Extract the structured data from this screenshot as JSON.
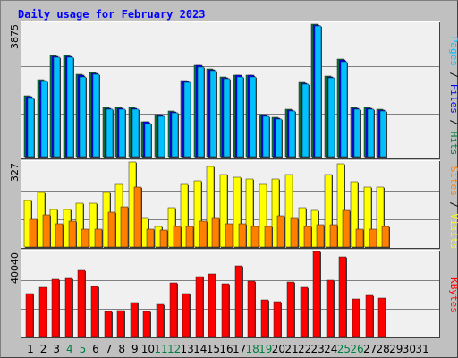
{
  "title": "Daily usage for February 2023",
  "chart_data": [
    {
      "type": "bar",
      "panel": "hits-files-pages",
      "categories": [
        "1",
        "2",
        "3",
        "4",
        "5",
        "6",
        "7",
        "8",
        "9",
        "10",
        "11",
        "12",
        "13",
        "14",
        "15",
        "16",
        "17",
        "18",
        "19",
        "20",
        "21",
        "22",
        "23",
        "24",
        "25",
        "26",
        "27",
        "28",
        "29",
        "30",
        "31"
      ],
      "ymax_label": "3875",
      "ylim": [
        0,
        3875
      ],
      "series": [
        {
          "name": "Hits",
          "color": "#008040",
          "values": [
            1780,
            2250,
            2950,
            2950,
            2400,
            2450,
            1430,
            1430,
            1430,
            1030,
            1230,
            1330,
            2230,
            2680,
            2570,
            2330,
            2390,
            2390,
            1230,
            1150,
            1380,
            2180,
            3880,
            2360,
            2850,
            1430,
            1430,
            1380,
            null,
            null,
            null
          ]
        },
        {
          "name": "Files",
          "color": "#0000ff",
          "values": [
            1750,
            2230,
            2930,
            2930,
            2380,
            2430,
            1410,
            1410,
            1410,
            1010,
            1210,
            1310,
            2210,
            2660,
            2550,
            2310,
            2370,
            2370,
            1210,
            1130,
            1360,
            2160,
            3860,
            2340,
            2830,
            1410,
            1410,
            1360,
            null,
            null,
            null
          ]
        },
        {
          "name": "Pages",
          "color": "#00c0ff",
          "values": [
            1700,
            2200,
            2900,
            2900,
            2330,
            2400,
            1380,
            1380,
            1380,
            980,
            1180,
            1280,
            2180,
            2630,
            2510,
            2280,
            2340,
            2340,
            1180,
            1100,
            1330,
            2130,
            3830,
            2300,
            2780,
            1380,
            1380,
            1330,
            null,
            null,
            null
          ]
        }
      ]
    },
    {
      "type": "bar",
      "panel": "visits-sites",
      "categories": [
        "1",
        "2",
        "3",
        "4",
        "5",
        "6",
        "7",
        "8",
        "9",
        "10",
        "11",
        "12",
        "13",
        "14",
        "15",
        "16",
        "17",
        "18",
        "19",
        "20",
        "21",
        "22",
        "23",
        "24",
        "25",
        "26",
        "27",
        "28",
        "29",
        "30",
        "31"
      ],
      "ymax_label": "327",
      "ylim": [
        0,
        327
      ],
      "series": [
        {
          "name": "Visits",
          "color": "#ffff00",
          "values": [
            180,
            210,
            145,
            145,
            170,
            170,
            210,
            240,
            327,
            110,
            80,
            150,
            240,
            255,
            310,
            280,
            270,
            260,
            240,
            260,
            280,
            150,
            140,
            280,
            320,
            250,
            230,
            230,
            null,
            null,
            null
          ]
        },
        {
          "name": "Sites",
          "color": "#ff8000",
          "values": [
            105,
            125,
            90,
            100,
            70,
            70,
            135,
            155,
            230,
            70,
            65,
            80,
            80,
            100,
            110,
            90,
            90,
            80,
            80,
            120,
            110,
            80,
            85,
            85,
            140,
            70,
            70,
            80,
            null,
            null,
            null
          ]
        }
      ]
    },
    {
      "type": "bar",
      "panel": "kbytes",
      "categories": [
        "1",
        "2",
        "3",
        "4",
        "5",
        "6",
        "7",
        "8",
        "9",
        "10",
        "11",
        "12",
        "13",
        "14",
        "15",
        "16",
        "17",
        "18",
        "19",
        "20",
        "21",
        "22",
        "23",
        "24",
        "25",
        "26",
        "27",
        "28",
        "29",
        "30",
        "31"
      ],
      "ymax_label": "40040",
      "ylim": [
        0,
        40040
      ],
      "series": [
        {
          "name": "KBytes",
          "color": "#ff0000",
          "values": [
            20200,
            23300,
            26900,
            27300,
            31100,
            23500,
            12000,
            12200,
            16100,
            11900,
            15100,
            25100,
            20400,
            28100,
            29600,
            24900,
            33400,
            26200,
            17200,
            16600,
            25700,
            23100,
            40040,
            26600,
            37600,
            17900,
            19300,
            18100,
            null,
            null,
            null
          ]
        }
      ]
    }
  ],
  "legends": [
    {
      "labels": [
        "Pages",
        "Files",
        "Hits"
      ],
      "colors": [
        "#00c0ff",
        "#0000ff",
        "#008040"
      ],
      "separator": " / "
    },
    {
      "labels": [
        "Sites",
        "Visits"
      ],
      "colors": [
        "#ff8000",
        "#ffff00"
      ],
      "separator": " / "
    },
    {
      "labels": [
        "KBytes"
      ],
      "colors": [
        "#ff0000"
      ],
      "separator": ""
    }
  ],
  "weekend_days": [
    4,
    5,
    11,
    12,
    18,
    19,
    25,
    26
  ],
  "tick_color_weekday": "#000000",
  "tick_color_weekend": "#008040",
  "colors": {
    "background": "#c0c0c0",
    "plot_bg": "#f0f0f0",
    "grid": "#808080",
    "title": "#0000ff"
  }
}
